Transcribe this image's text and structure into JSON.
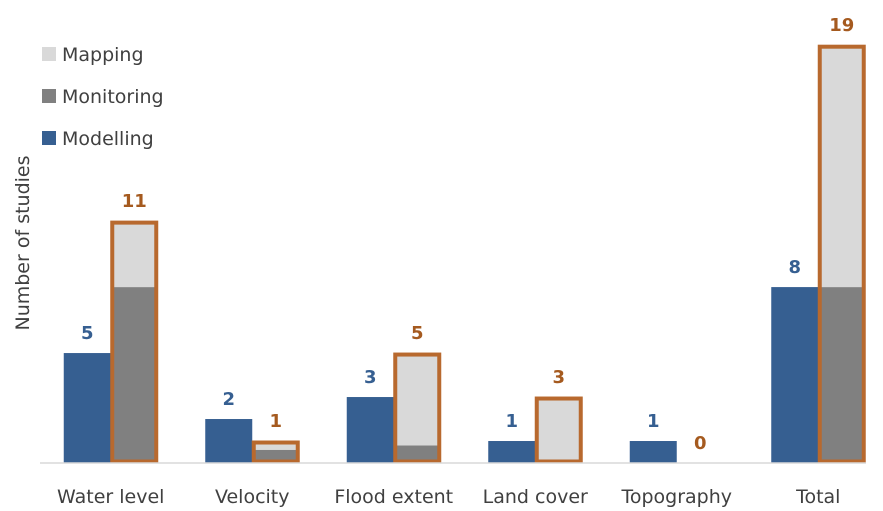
{
  "chart_data": {
    "type": "bar",
    "title": "",
    "xlabel": "",
    "ylabel": "Number of studies",
    "ylim": [
      0,
      19.6
    ],
    "grid": false,
    "legend_position": "top-left",
    "categories": [
      "Water level",
      "Velocity",
      "Flood extent",
      "Land cover",
      "Topography",
      "Total"
    ],
    "legend": [
      {
        "name": "Mapping",
        "color": "#d9d9d9"
      },
      {
        "name": "Monitoring",
        "color": "#808080"
      },
      {
        "name": "Modelling",
        "color": "#365f91"
      }
    ],
    "modelling": {
      "name": "Modelling",
      "color": "#365f91",
      "label_color": "#365f91",
      "values": [
        5,
        2,
        3,
        1,
        1,
        8
      ],
      "labels": [
        "5",
        "2",
        "3",
        "1",
        "1",
        "8"
      ]
    },
    "stacked": {
      "outline_color": "#b8692e",
      "label_color": "#a55a1f",
      "series": [
        {
          "name": "Monitoring",
          "color": "#808080",
          "values": [
            8,
            0.6,
            0.8,
            0,
            0,
            8
          ]
        },
        {
          "name": "Mapping",
          "color": "#d9d9d9",
          "values": [
            3,
            0.4,
            4.2,
            3,
            0,
            11
          ]
        }
      ],
      "totals": [
        11,
        1,
        5,
        3,
        0,
        19
      ],
      "labels": [
        "11",
        "1",
        "5",
        "3",
        "0",
        "19"
      ]
    }
  }
}
